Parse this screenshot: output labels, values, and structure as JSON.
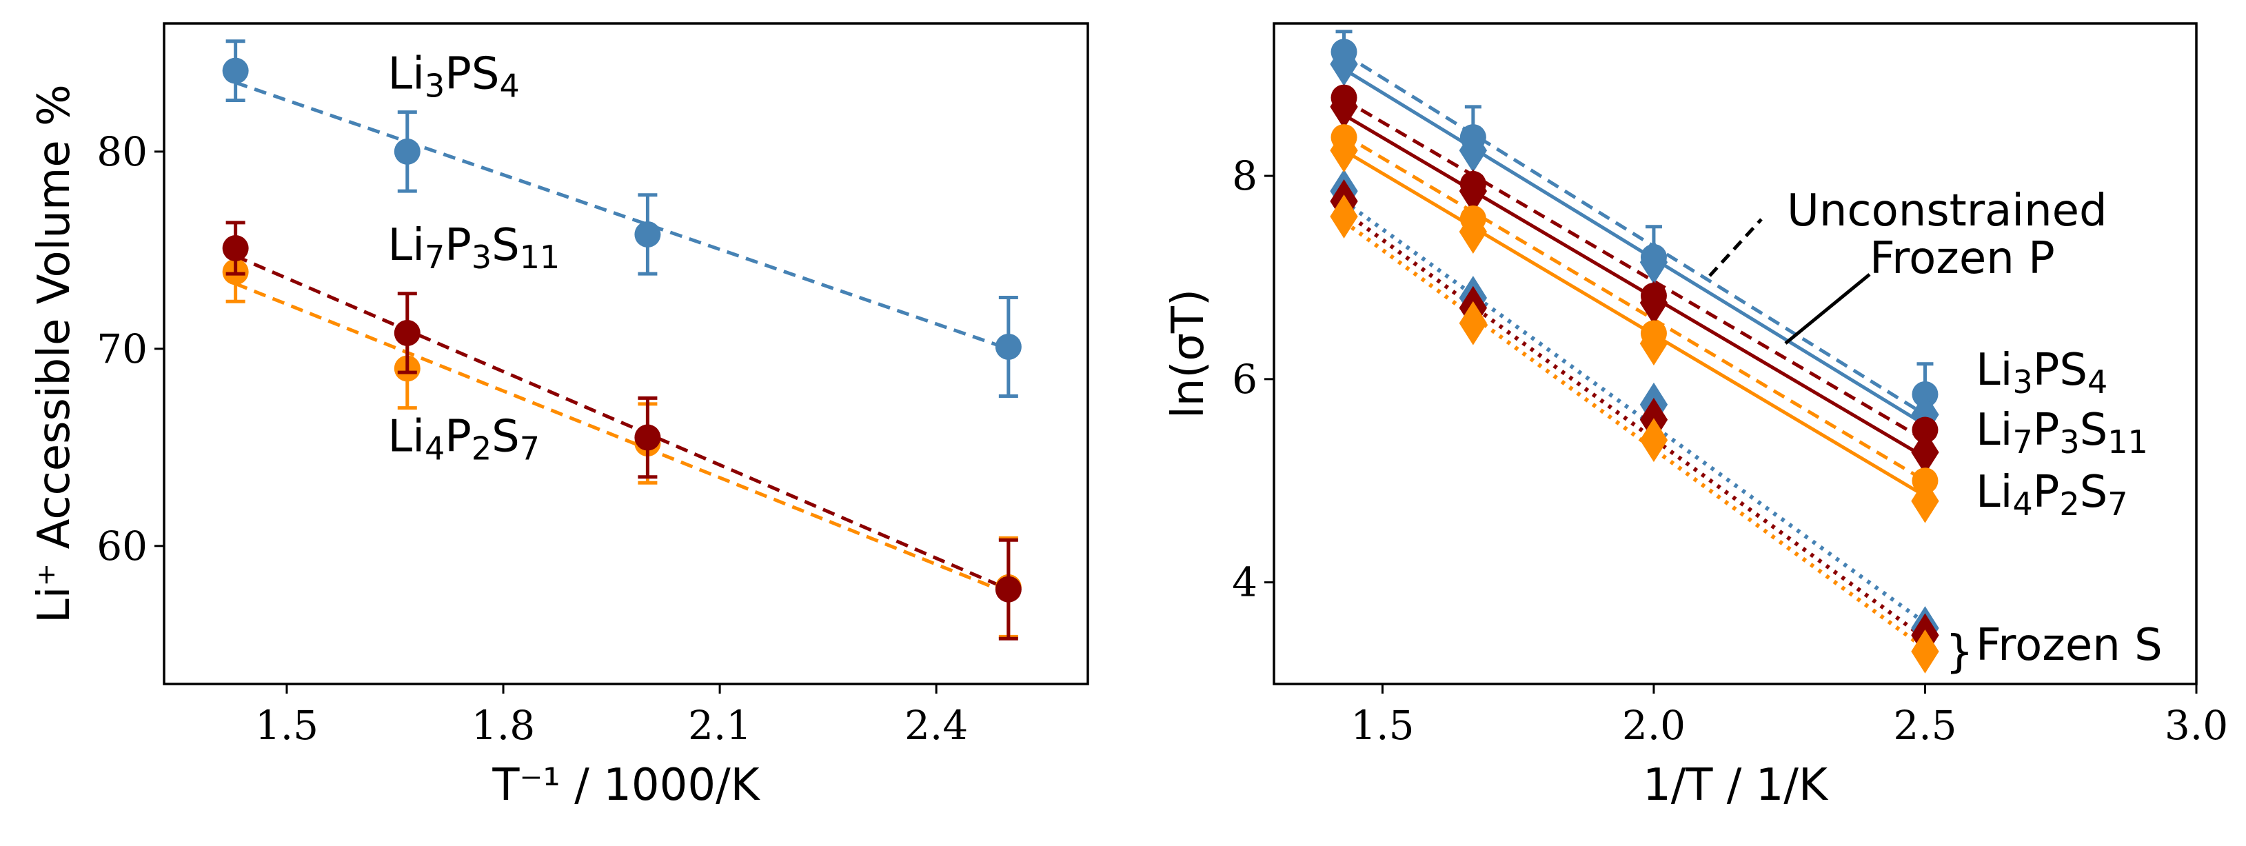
{
  "chart_data": [
    {
      "type": "scatter",
      "xlabel": "T⁻¹ / 1000/K",
      "ylabel": "Li⁺ Accessible Volume %",
      "xlim": [
        1.33,
        2.61
      ],
      "ylim": [
        53,
        86.5
      ],
      "xticks": [
        1.5,
        1.8,
        2.1,
        2.4
      ],
      "xtick_labels": [
        "1.5",
        "1.8",
        "2.1",
        "2.4"
      ],
      "yticks": [
        60,
        70,
        80
      ],
      "ytick_labels": [
        "60",
        "70",
        "80"
      ],
      "grid": false,
      "series": [
        {
          "name": "Li3PS4",
          "color": "#4682b4",
          "x": [
            1.429,
            1.667,
            2.0,
            2.5
          ],
          "y": [
            84.1,
            80.0,
            75.8,
            70.1
          ],
          "err": [
            1.5,
            2.0,
            2.0,
            2.5
          ],
          "fit": [
            83.5,
            70.0
          ]
        },
        {
          "name": "Li4P2S7",
          "color": "#ff8c00",
          "x": [
            1.429,
            1.667,
            2.0,
            2.5
          ],
          "y": [
            73.9,
            69.0,
            65.2,
            57.9
          ],
          "err": [
            1.5,
            2.0,
            2.0,
            2.5
          ],
          "fit": [
            73.3,
            57.6
          ]
        },
        {
          "name": "Li7P3S11",
          "color": "#8b0000",
          "x": [
            1.429,
            1.667,
            2.0,
            2.5
          ],
          "y": [
            75.1,
            70.8,
            65.5,
            57.8
          ],
          "err": [
            1.3,
            2.0,
            2.0,
            2.5
          ],
          "fit": [
            74.7,
            57.8
          ]
        }
      ],
      "annotations": [
        {
          "base": "Li",
          "sub1": "3",
          "mid": "PS",
          "sub2": "4",
          "x": 1.64,
          "y": 83.2,
          "series": "Li3PS4"
        },
        {
          "base": "Li",
          "sub1": "7",
          "mid": "P",
          "sub2": "3",
          "mid2": "S",
          "sub3": "11",
          "x": 1.64,
          "y": 74.5,
          "series": "Li7P3S11"
        },
        {
          "base": "Li",
          "sub1": "4",
          "mid": "P",
          "sub2": "2",
          "mid2": "S",
          "sub3": "7",
          "x": 1.64,
          "y": 64.8,
          "series": "Li4P2S7"
        }
      ]
    },
    {
      "type": "line",
      "xlabel": "1/T / 1/K",
      "ylabel": "ln(σT)",
      "xlim": [
        1.3,
        3.0
      ],
      "ylim": [
        3.0,
        9.5
      ],
      "xticks": [
        1.5,
        2.0,
        2.5,
        3.0
      ],
      "xtick_labels": [
        "1.5",
        "2.0",
        "2.5",
        "3.0"
      ],
      "yticks": [
        4,
        6,
        8
      ],
      "ytick_labels": [
        "4",
        "6",
        "8"
      ],
      "grid": false,
      "x": [
        1.429,
        1.667,
        2.0,
        2.5
      ],
      "series": [
        {
          "name": "Li3PS4",
          "group": "Unconstrained",
          "color": "#4682b4",
          "marker": "circle",
          "line": "dashed",
          "y": [
            9.22,
            8.38,
            7.2,
            5.85
          ],
          "err": [
            0.2,
            0.3,
            0.3,
            0.3
          ],
          "fit": [
            9.2,
            5.65
          ]
        },
        {
          "name": "Li3PS4",
          "group": "Frozen P",
          "color": "#4682b4",
          "marker": "diamond",
          "line": "solid",
          "y": [
            9.1,
            8.25,
            7.15,
            5.65
          ],
          "fit": [
            9.05,
            5.55
          ]
        },
        {
          "name": "Li3PS4",
          "group": "Frozen S",
          "color": "#4682b4",
          "marker": "diamond",
          "line": "dotted",
          "y": [
            7.85,
            6.8,
            5.75,
            3.55
          ],
          "fit": [
            7.75,
            3.6
          ]
        },
        {
          "name": "Li7P3S11",
          "group": "Unconstrained",
          "color": "#8b0000",
          "marker": "circle",
          "line": "dashed",
          "y": [
            8.77,
            7.92,
            6.82,
            5.5
          ],
          "fit": [
            8.75,
            5.4
          ]
        },
        {
          "name": "Li7P3S11",
          "group": "Frozen P",
          "color": "#8b0000",
          "marker": "diamond",
          "line": "solid",
          "y": [
            8.68,
            7.85,
            6.75,
            5.28
          ],
          "fit": [
            8.6,
            5.23
          ]
        },
        {
          "name": "Li7P3S11",
          "group": "Frozen S",
          "color": "#8b0000",
          "marker": "diamond",
          "line": "dotted",
          "y": [
            7.75,
            6.7,
            5.6,
            3.48
          ],
          "fit": [
            7.65,
            3.45
          ]
        },
        {
          "name": "Li4P2S7",
          "group": "Unconstrained",
          "color": "#ff8c00",
          "marker": "circle",
          "line": "dashed",
          "y": [
            8.38,
            7.58,
            6.45,
            5.0
          ],
          "fit": [
            8.4,
            5.0
          ]
        },
        {
          "name": "Li4P2S7",
          "group": "Frozen P",
          "color": "#ff8c00",
          "marker": "diamond",
          "line": "solid",
          "y": [
            8.25,
            7.45,
            6.35,
            4.8
          ],
          "fit": [
            8.25,
            4.85
          ]
        },
        {
          "name": "Li4P2S7",
          "group": "Frozen S",
          "color": "#ff8c00",
          "marker": "diamond",
          "line": "dotted",
          "y": [
            7.6,
            6.55,
            5.4,
            3.32
          ],
          "fit": [
            7.55,
            3.35
          ]
        }
      ],
      "annotations": {
        "unconstrained": "Unconstrained",
        "frozen_p": "Frozen P",
        "frozen_s": "Frozen S",
        "brace": "}",
        "compounds": [
          {
            "base": "Li",
            "sub1": "3",
            "mid": "PS",
            "sub2": "4"
          },
          {
            "base": "Li",
            "sub1": "7",
            "mid": "P",
            "sub2": "3",
            "mid2": "S",
            "sub3": "11"
          },
          {
            "base": "Li",
            "sub1": "4",
            "mid": "P",
            "sub2": "2",
            "mid2": "S",
            "sub3": "7"
          }
        ]
      }
    }
  ]
}
